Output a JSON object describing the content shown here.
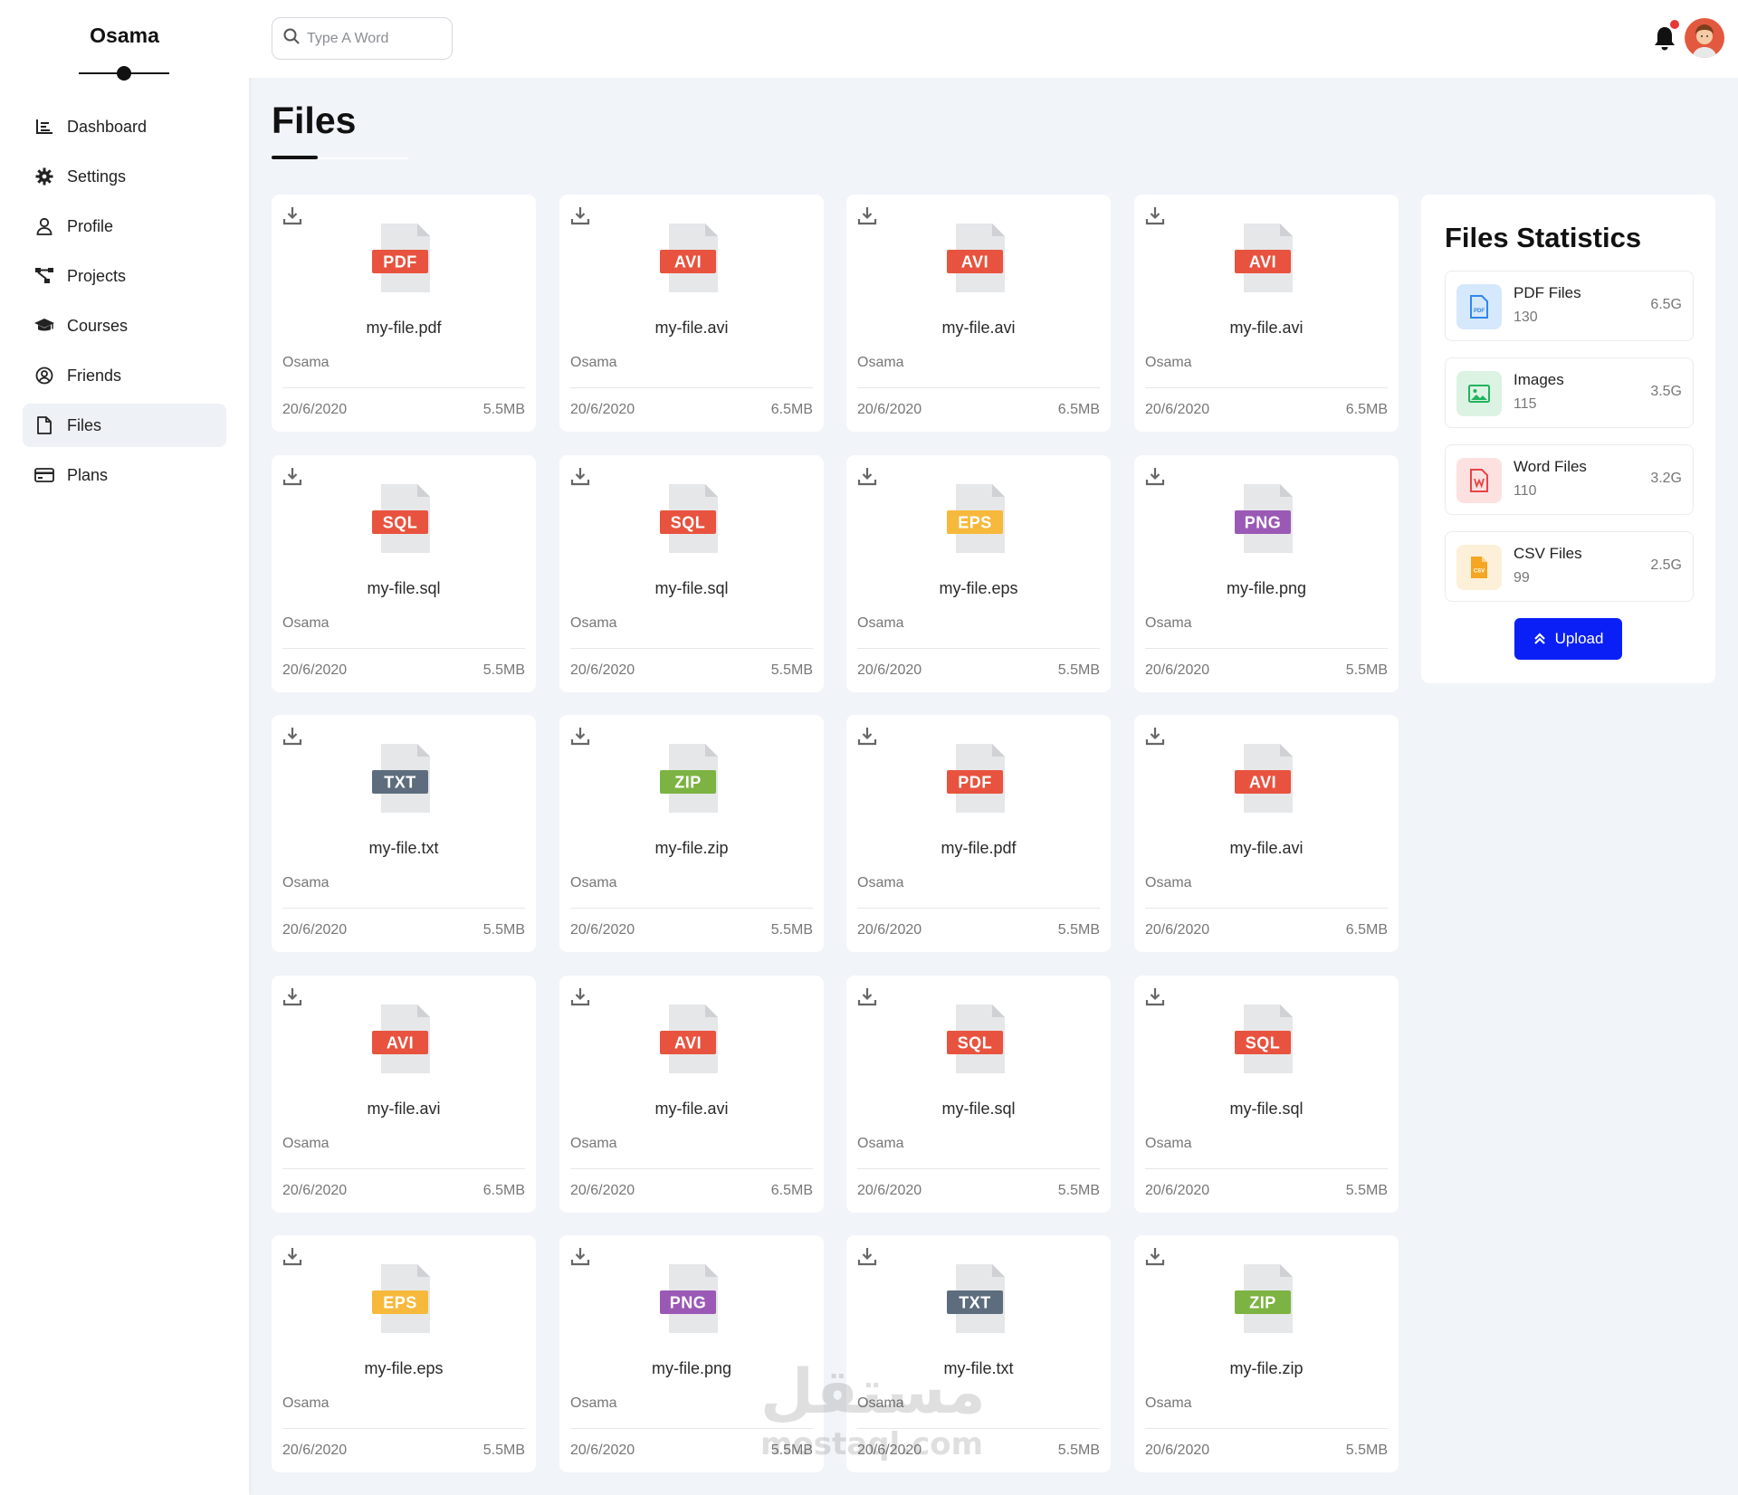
{
  "brand": {
    "name": "Osama"
  },
  "nav": {
    "items": [
      {
        "label": "Dashboard",
        "icon": "chart-icon"
      },
      {
        "label": "Settings",
        "icon": "gear-icon"
      },
      {
        "label": "Profile",
        "icon": "user-icon"
      },
      {
        "label": "Projects",
        "icon": "diagram-icon"
      },
      {
        "label": "Courses",
        "icon": "graduation-cap-icon"
      },
      {
        "label": "Friends",
        "icon": "user-circle-icon"
      },
      {
        "label": "Files",
        "icon": "file-icon",
        "active": true
      },
      {
        "label": "Plans",
        "icon": "credit-card-icon"
      }
    ]
  },
  "search": {
    "placeholder": "Type A Word",
    "value": ""
  },
  "header": {
    "notification_badge_color": "#e53935"
  },
  "page": {
    "title": "Files"
  },
  "colors": {
    "PDF": "#e8533f",
    "AVI": "#e8533f",
    "SQL": "#e8533f",
    "EPS": "#f6b93b",
    "PNG": "#9b59b6",
    "TXT": "#5d6d7e",
    "ZIP": "#7cb342",
    "accent": "#0a1ff5"
  },
  "files": [
    {
      "type": "PDF",
      "name": "my-file.pdf",
      "owner": "Osama",
      "date": "20/6/2020",
      "size": "5.5MB"
    },
    {
      "type": "AVI",
      "name": "my-file.avi",
      "owner": "Osama",
      "date": "20/6/2020",
      "size": "6.5MB"
    },
    {
      "type": "AVI",
      "name": "my-file.avi",
      "owner": "Osama",
      "date": "20/6/2020",
      "size": "6.5MB"
    },
    {
      "type": "AVI",
      "name": "my-file.avi",
      "owner": "Osama",
      "date": "20/6/2020",
      "size": "6.5MB"
    },
    {
      "type": "SQL",
      "name": "my-file.sql",
      "owner": "Osama",
      "date": "20/6/2020",
      "size": "5.5MB"
    },
    {
      "type": "SQL",
      "name": "my-file.sql",
      "owner": "Osama",
      "date": "20/6/2020",
      "size": "5.5MB"
    },
    {
      "type": "EPS",
      "name": "my-file.eps",
      "owner": "Osama",
      "date": "20/6/2020",
      "size": "5.5MB"
    },
    {
      "type": "PNG",
      "name": "my-file.png",
      "owner": "Osama",
      "date": "20/6/2020",
      "size": "5.5MB"
    },
    {
      "type": "TXT",
      "name": "my-file.txt",
      "owner": "Osama",
      "date": "20/6/2020",
      "size": "5.5MB"
    },
    {
      "type": "ZIP",
      "name": "my-file.zip",
      "owner": "Osama",
      "date": "20/6/2020",
      "size": "5.5MB"
    },
    {
      "type": "PDF",
      "name": "my-file.pdf",
      "owner": "Osama",
      "date": "20/6/2020",
      "size": "5.5MB"
    },
    {
      "type": "AVI",
      "name": "my-file.avi",
      "owner": "Osama",
      "date": "20/6/2020",
      "size": "6.5MB"
    },
    {
      "type": "AVI",
      "name": "my-file.avi",
      "owner": "Osama",
      "date": "20/6/2020",
      "size": "6.5MB"
    },
    {
      "type": "AVI",
      "name": "my-file.avi",
      "owner": "Osama",
      "date": "20/6/2020",
      "size": "6.5MB"
    },
    {
      "type": "SQL",
      "name": "my-file.sql",
      "owner": "Osama",
      "date": "20/6/2020",
      "size": "5.5MB"
    },
    {
      "type": "SQL",
      "name": "my-file.sql",
      "owner": "Osama",
      "date": "20/6/2020",
      "size": "5.5MB"
    },
    {
      "type": "EPS",
      "name": "my-file.eps",
      "owner": "Osama",
      "date": "20/6/2020",
      "size": "5.5MB"
    },
    {
      "type": "PNG",
      "name": "my-file.png",
      "owner": "Osama",
      "date": "20/6/2020",
      "size": "5.5MB"
    },
    {
      "type": "TXT",
      "name": "my-file.txt",
      "owner": "Osama",
      "date": "20/6/2020",
      "size": "5.5MB"
    },
    {
      "type": "ZIP",
      "name": "my-file.zip",
      "owner": "Osama",
      "date": "20/6/2020",
      "size": "5.5MB"
    }
  ],
  "stats": {
    "title": "Files Statistics",
    "items": [
      {
        "name": "PDF Files",
        "count": "130",
        "size": "6.5G",
        "icon": "pdf-icon",
        "bg": "#d6e8fb",
        "fg": "#2f86eb"
      },
      {
        "name": "Images",
        "count": "115",
        "size": "3.5G",
        "icon": "image-icon",
        "bg": "#dcf3e4",
        "fg": "#22b35e"
      },
      {
        "name": "Word Files",
        "count": "110",
        "size": "3.2G",
        "icon": "word-icon",
        "bg": "#fde1e1",
        "fg": "#e84444"
      },
      {
        "name": "CSV Files",
        "count": "99",
        "size": "2.5G",
        "icon": "csv-icon",
        "bg": "#fdf0d8",
        "fg": "#f5a623"
      }
    ],
    "upload_label": "Upload"
  },
  "watermark": {
    "line1": "مستقل",
    "line2": "mostaql.com"
  }
}
